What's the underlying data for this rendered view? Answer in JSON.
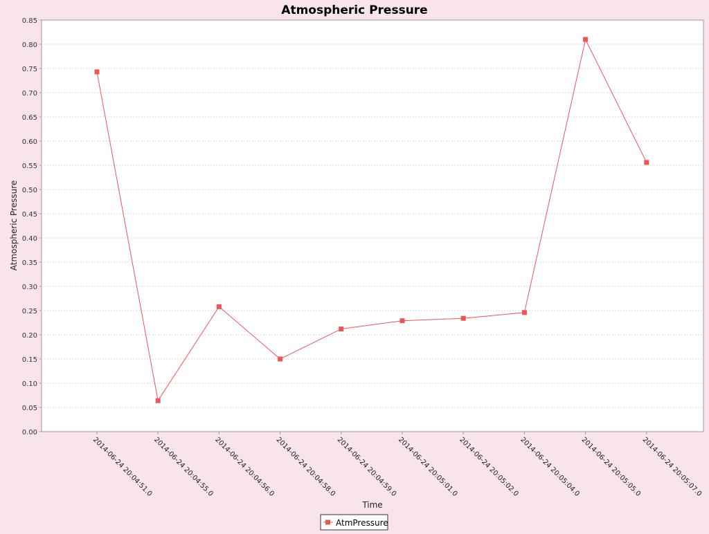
{
  "colors": {
    "page_background": "#f9e5e9",
    "plot_background": "#ffffff",
    "series": "#ee5555",
    "grid": "#d8d8d8",
    "axis": "#999999"
  },
  "chart_data": {
    "type": "line",
    "title": "Atmospheric Pressure",
    "xlabel": "Time",
    "ylabel": "Atmospheric Pressure",
    "ylim": [
      0,
      0.85
    ],
    "y_ticks": [
      "0.00",
      "0.05",
      "0.10",
      "0.15",
      "0.20",
      "0.25",
      "0.30",
      "0.35",
      "0.40",
      "0.45",
      "0.50",
      "0.55",
      "0.60",
      "0.65",
      "0.70",
      "0.75",
      "0.80",
      "0.85"
    ],
    "categories": [
      "2014-06-24 20:04:51.0",
      "2014-06-24 20:04:55.0",
      "2014-06-24 20:04:56.0",
      "2014-06-24 20:04:58.0",
      "2014-06-24 20:04:59.0",
      "2014-06-24 20:05:01.0",
      "2014-06-24 20:05:02.0",
      "2014-06-24 20:05:04.0",
      "2014-06-24 20:05:05.0",
      "2014-06-24 20:05:07.0"
    ],
    "series": [
      {
        "name": "AtmPressure",
        "values": [
          0.743,
          0.064,
          0.258,
          0.15,
          0.212,
          0.229,
          0.234,
          0.246,
          0.81,
          0.556
        ]
      }
    ],
    "grid": true,
    "legend": "bottom-center",
    "marker": "square"
  }
}
